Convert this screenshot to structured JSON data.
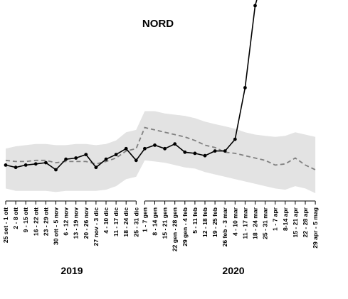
{
  "chart_data": {
    "type": "line",
    "title": "NORD",
    "xlabel": "",
    "ylabel": "",
    "grid": false,
    "legend": "none",
    "groups": [
      {
        "label": "2019",
        "categories": [
          "25 set - 1 ott",
          "2 - 8 ott",
          "9 - 15 ott",
          "16 - 22 ott",
          "23 - 29 ott",
          "30 ott - 5 nov",
          "6 - 12 nov",
          "13 - 19 nov",
          "20 - 26 nov",
          "27 nov - 3 dic",
          "4 - 10 dic",
          "11 - 17 dic",
          "18 - 24 dic",
          "25 - 31 dic"
        ]
      },
      {
        "label": "2020",
        "categories": [
          "1 - 7 gen",
          "8 - 14 gen",
          "15 - 21 gen",
          "22 gen - 28 gen",
          "29 gen - 4 feb",
          "5 - 11 feb",
          "12 - 18 feb",
          "19 - 25 feb",
          "26 feb - 3 mar",
          "4 - 10 mar",
          "11 - 17 mar",
          "18 - 24 mar",
          "25 - 31 mar",
          "1 - 7 apr",
          "8-14 apr",
          "15 - 21 apr",
          "22 - 28 apr",
          "29 apr - 5 mag"
        ]
      }
    ],
    "observed": [
      22,
      21,
      22,
      22.5,
      23,
      20,
      24.5,
      25,
      26.5,
      21,
      24.5,
      26.5,
      29,
      24,
      29,
      30.5,
      29,
      31,
      27.5,
      27,
      26,
      28,
      28,
      33,
      55,
      90,
      105,
      96,
      null,
      null,
      null,
      null
    ],
    "observed_colors": {
      "line": "#000000",
      "marker": "#000000",
      "highlight": "#b22222"
    },
    "expected": [
      24,
      23.5,
      23.5,
      24,
      24,
      23,
      23.5,
      23.5,
      23.5,
      22.5,
      23.5,
      25,
      28,
      29,
      38,
      37,
      36,
      35,
      34,
      32.5,
      30.5,
      29.5,
      27.5,
      27,
      26,
      25,
      24,
      22,
      22.5,
      25,
      22,
      20
    ],
    "band_upper": [
      29,
      30,
      30.5,
      31,
      31,
      30.5,
      30.5,
      31,
      31,
      30.5,
      31,
      32.5,
      36,
      37,
      45,
      45,
      44,
      43.5,
      43,
      42,
      40.5,
      39.5,
      38.5,
      37.5,
      36,
      35,
      34.5,
      34,
      34.5,
      36,
      35,
      34
    ],
    "band_lower": [
      12,
      11,
      11,
      11,
      11,
      10.5,
      11,
      11,
      11,
      11,
      11.5,
      13,
      16,
      17,
      24,
      23.5,
      23,
      22,
      21,
      20.5,
      19,
      18,
      17,
      16,
      15,
      14,
      13,
      12,
      11.5,
      13,
      12,
      10
    ],
    "colors": {
      "band": "#e3e3e3",
      "expected": "#808080",
      "observed": "#000000"
    }
  }
}
